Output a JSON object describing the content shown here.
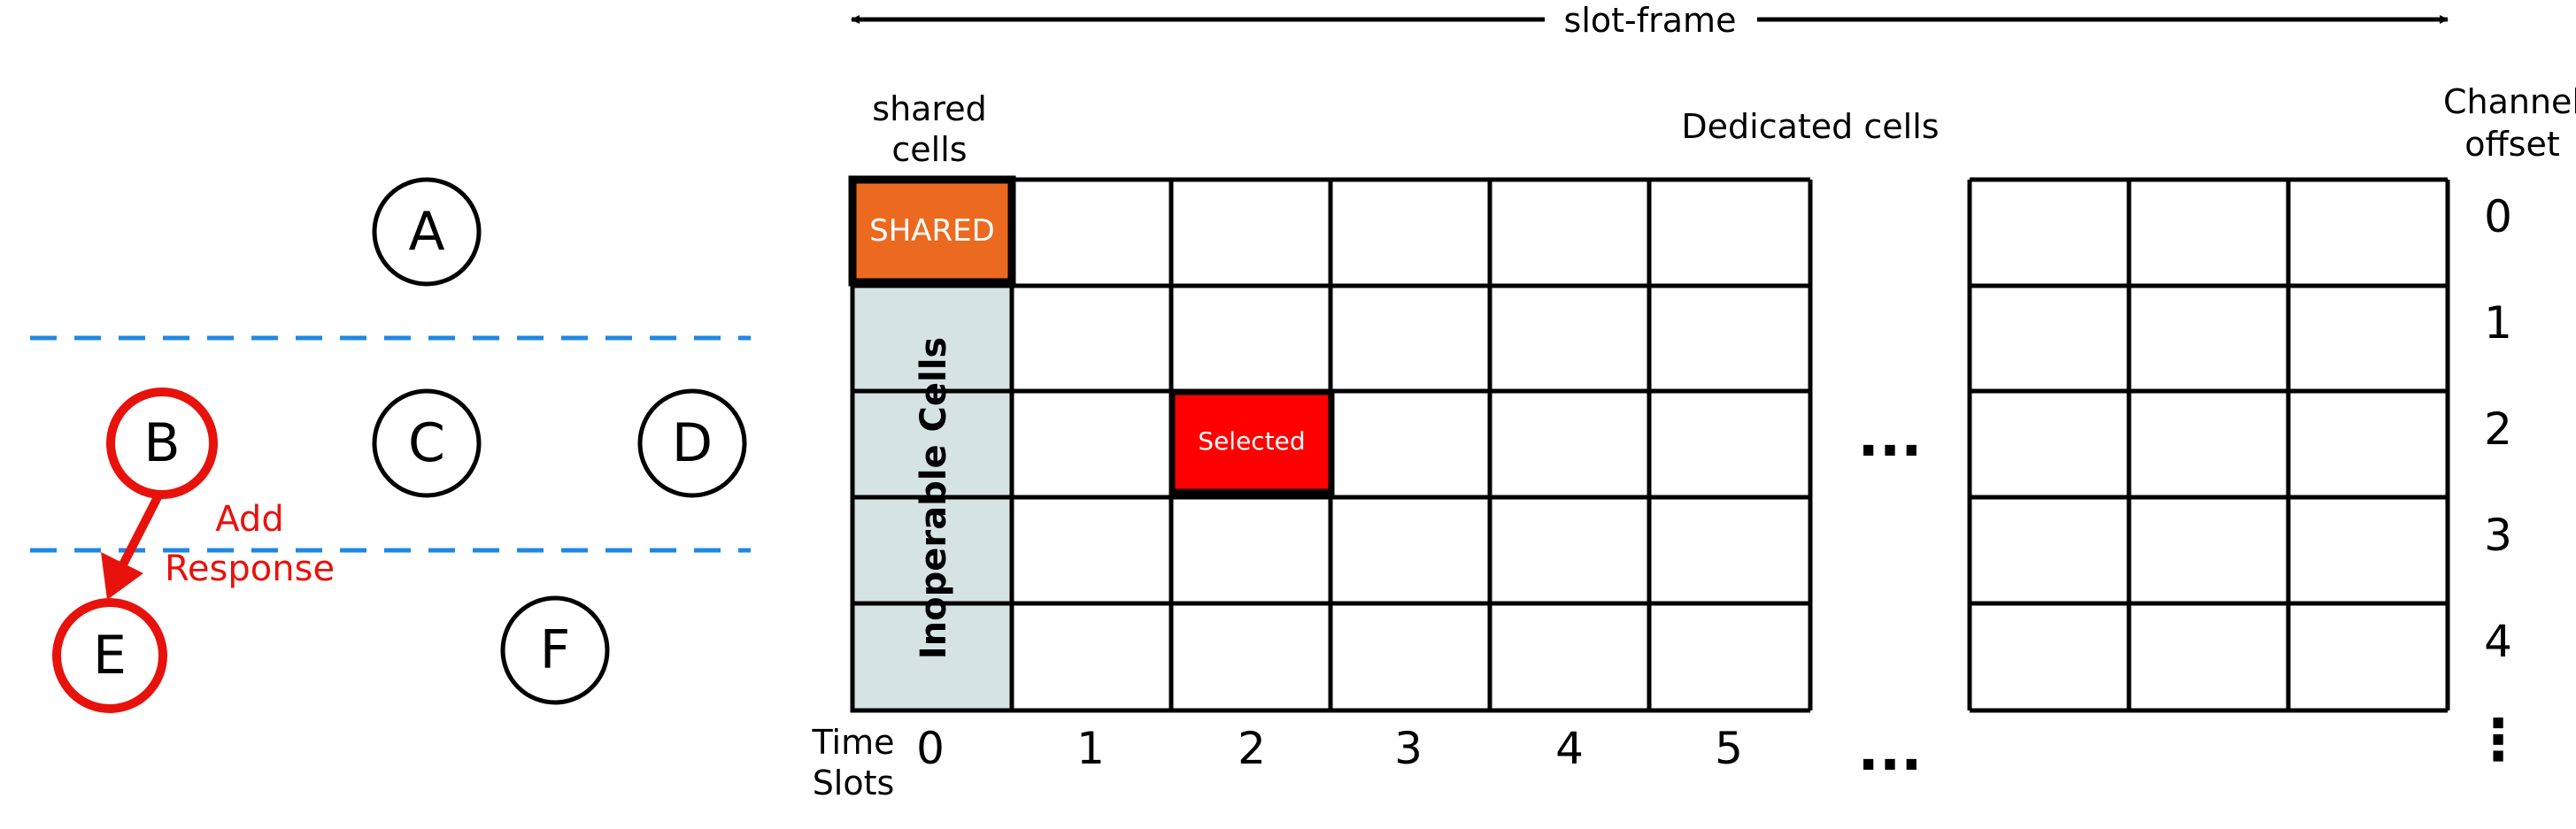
{
  "tree": {
    "nodes": [
      {
        "id": "A",
        "label": "A",
        "highlighted": false
      },
      {
        "id": "B",
        "label": "B",
        "highlighted": true
      },
      {
        "id": "C",
        "label": "C",
        "highlighted": false
      },
      {
        "id": "D",
        "label": "D",
        "highlighted": false
      },
      {
        "id": "E",
        "label": "E",
        "highlighted": true
      },
      {
        "id": "F",
        "label": "F",
        "highlighted": false
      }
    ],
    "edge": {
      "from": "B",
      "to": "E"
    },
    "edge_label_line1": "Add",
    "edge_label_line2": "Response"
  },
  "slotframe": {
    "label": "slot-frame",
    "shared_header_line1": "shared",
    "shared_header_line2": "cells",
    "dedicated_header": "Dedicated cells",
    "channel_header_line1": "Channel",
    "channel_header_line2": "offset",
    "shared_cell_label": "SHARED",
    "inoperable_label": "Inoperable Cells",
    "selected_cell_label": "Selected",
    "selected_cell": {
      "slot": 2,
      "channel": 2
    },
    "time_slots_label_line1": "Time",
    "time_slots_label_line2": "Slots",
    "time_slots": [
      "0",
      "1",
      "2",
      "3",
      "4",
      "5"
    ],
    "channel_offsets": [
      "0",
      "1",
      "2",
      "3",
      "4"
    ],
    "ellipsis": "...",
    "vertical_ellipsis": "⋮"
  },
  "colors": {
    "highlight": "#e8120c",
    "shared": "#ec6a1f",
    "inoperable": "#d6e3e3",
    "selected": "#ff0000",
    "divider": "#1e88e5",
    "line": "#000000"
  }
}
